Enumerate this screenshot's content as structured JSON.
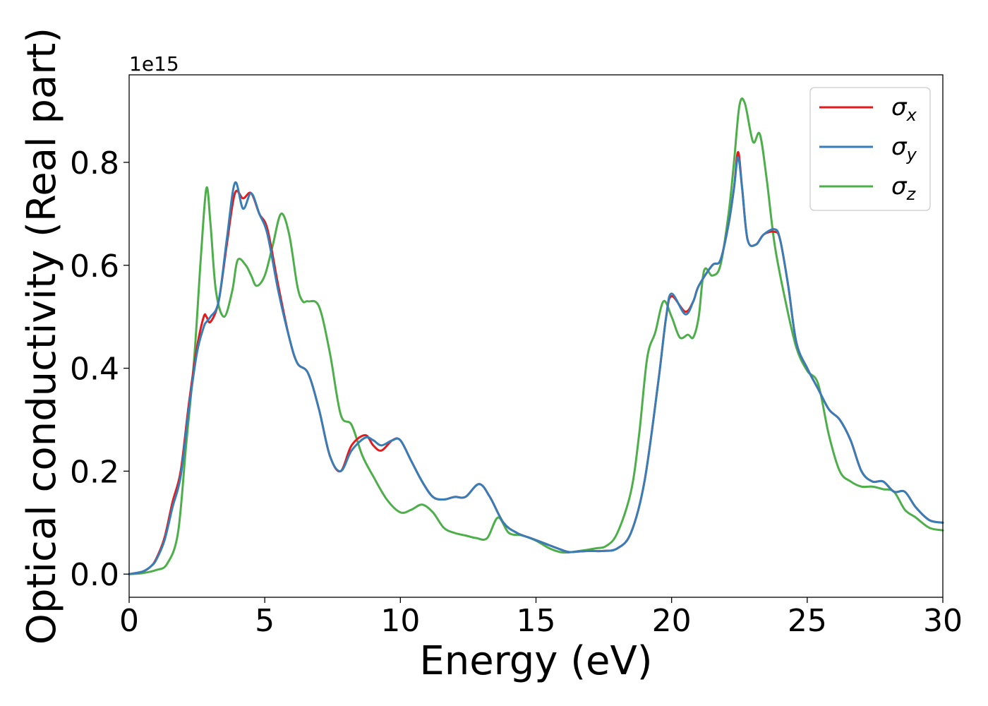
{
  "chart_data": {
    "type": "line",
    "title": "",
    "xlabel": "Energy (eV)",
    "ylabel": "Optical conductivity (Real part)",
    "y_offset_label": "1e15",
    "xlim": [
      0,
      30
    ],
    "ylim": [
      -0.045,
      0.97
    ],
    "xticks": [
      0,
      5,
      10,
      15,
      20,
      25,
      30
    ],
    "xtick_labels": [
      "0",
      "5",
      "10",
      "15",
      "20",
      "25",
      "30"
    ],
    "yticks": [
      0.0,
      0.2,
      0.4,
      0.6,
      0.8
    ],
    "ytick_labels": [
      "0.0",
      "0.2",
      "0.4",
      "0.6",
      "0.8"
    ],
    "grid": false,
    "legend_position": "top-right",
    "series": [
      {
        "name": "σx",
        "legend_base": "σ",
        "legend_sub": "x",
        "color": "#e41a1c",
        "x": [
          0,
          0.5,
          0.8,
          1.0,
          1.3,
          1.6,
          1.9,
          2.2,
          2.5,
          2.75,
          2.85,
          3.0,
          3.3,
          3.6,
          3.9,
          4.2,
          4.5,
          4.8,
          5.1,
          5.5,
          5.9,
          6.2,
          6.6,
          7.0,
          7.4,
          7.8,
          8.2,
          8.7,
          9.0,
          9.3,
          9.7,
          10.0,
          10.4,
          10.8,
          11.2,
          11.6,
          12.0,
          12.4,
          12.9,
          13.3,
          13.8,
          14.3,
          14.8,
          15.3,
          15.8,
          16.2,
          16.6,
          17.0,
          17.5,
          18.0,
          18.5,
          19.0,
          19.5,
          19.8,
          20.0,
          20.5,
          20.8,
          21.0,
          21.5,
          21.8,
          22.1,
          22.3,
          22.45,
          22.6,
          22.8,
          23.1,
          23.4,
          23.8,
          24.0,
          24.3,
          24.6,
          25.0,
          25.4,
          25.8,
          26.2,
          26.6,
          27.0,
          27.4,
          27.8,
          28.2,
          28.6,
          29.0,
          29.5,
          30.0
        ],
        "y": [
          0.0,
          0.005,
          0.015,
          0.03,
          0.07,
          0.14,
          0.2,
          0.33,
          0.44,
          0.5,
          0.5,
          0.49,
          0.53,
          0.64,
          0.74,
          0.73,
          0.74,
          0.7,
          0.67,
          0.56,
          0.46,
          0.41,
          0.39,
          0.32,
          0.23,
          0.2,
          0.25,
          0.27,
          0.25,
          0.24,
          0.26,
          0.26,
          0.22,
          0.18,
          0.15,
          0.145,
          0.15,
          0.15,
          0.175,
          0.15,
          0.1,
          0.08,
          0.07,
          0.06,
          0.05,
          0.043,
          0.044,
          0.045,
          0.045,
          0.05,
          0.08,
          0.18,
          0.37,
          0.5,
          0.54,
          0.51,
          0.53,
          0.56,
          0.6,
          0.61,
          0.68,
          0.75,
          0.82,
          0.75,
          0.65,
          0.64,
          0.66,
          0.665,
          0.65,
          0.56,
          0.45,
          0.4,
          0.36,
          0.32,
          0.3,
          0.26,
          0.2,
          0.18,
          0.18,
          0.16,
          0.16,
          0.13,
          0.105,
          0.1
        ]
      },
      {
        "name": "σy",
        "legend_base": "σ",
        "legend_sub": "y",
        "color": "#377eb8",
        "x": [
          0,
          0.5,
          0.8,
          1.0,
          1.3,
          1.6,
          1.9,
          2.2,
          2.5,
          2.75,
          2.85,
          3.0,
          3.3,
          3.6,
          3.9,
          4.2,
          4.5,
          4.8,
          5.1,
          5.5,
          5.9,
          6.2,
          6.6,
          7.0,
          7.4,
          7.8,
          8.2,
          8.7,
          9.0,
          9.3,
          9.7,
          10.0,
          10.4,
          10.8,
          11.2,
          11.6,
          12.0,
          12.4,
          12.9,
          13.3,
          13.8,
          14.3,
          14.8,
          15.3,
          15.8,
          16.2,
          16.6,
          17.0,
          17.5,
          18.0,
          18.5,
          19.0,
          19.5,
          19.8,
          20.0,
          20.5,
          20.8,
          21.0,
          21.5,
          21.8,
          22.1,
          22.3,
          22.45,
          22.6,
          22.8,
          23.1,
          23.4,
          23.8,
          24.0,
          24.3,
          24.6,
          25.0,
          25.4,
          25.8,
          26.2,
          26.6,
          27.0,
          27.4,
          27.8,
          28.2,
          28.6,
          29.0,
          29.5,
          30.0
        ],
        "y": [
          0.0,
          0.005,
          0.015,
          0.028,
          0.065,
          0.13,
          0.19,
          0.32,
          0.43,
          0.48,
          0.49,
          0.5,
          0.53,
          0.65,
          0.76,
          0.71,
          0.74,
          0.7,
          0.66,
          0.55,
          0.46,
          0.41,
          0.39,
          0.32,
          0.23,
          0.2,
          0.24,
          0.265,
          0.26,
          0.25,
          0.26,
          0.26,
          0.22,
          0.18,
          0.15,
          0.145,
          0.15,
          0.15,
          0.175,
          0.15,
          0.1,
          0.08,
          0.07,
          0.06,
          0.05,
          0.043,
          0.044,
          0.045,
          0.045,
          0.05,
          0.08,
          0.18,
          0.37,
          0.5,
          0.545,
          0.505,
          0.53,
          0.56,
          0.6,
          0.61,
          0.68,
          0.75,
          0.81,
          0.75,
          0.65,
          0.64,
          0.66,
          0.67,
          0.65,
          0.56,
          0.45,
          0.4,
          0.36,
          0.32,
          0.3,
          0.26,
          0.2,
          0.18,
          0.18,
          0.16,
          0.16,
          0.13,
          0.105,
          0.1
        ]
      },
      {
        "name": "σz",
        "legend_base": "σ",
        "legend_sub": "z",
        "color": "#4daf4a",
        "x": [
          0,
          0.5,
          1.0,
          1.4,
          1.8,
          2.1,
          2.4,
          2.65,
          2.85,
          3.0,
          3.2,
          3.5,
          3.8,
          4.0,
          4.3,
          4.5,
          4.7,
          5.0,
          5.3,
          5.6,
          5.9,
          6.2,
          6.4,
          6.6,
          7.0,
          7.4,
          7.8,
          8.2,
          8.6,
          9.0,
          9.5,
          10.0,
          10.4,
          10.8,
          11.2,
          11.6,
          12.0,
          12.4,
          12.8,
          13.2,
          13.6,
          14.0,
          14.5,
          15.0,
          15.5,
          16.0,
          16.6,
          17.2,
          17.6,
          18.0,
          18.5,
          18.8,
          19.1,
          19.4,
          19.7,
          20.0,
          20.3,
          20.6,
          20.8,
          21.0,
          21.2,
          21.5,
          21.8,
          22.1,
          22.3,
          22.5,
          22.7,
          23.0,
          23.25,
          23.5,
          23.8,
          24.2,
          24.6,
          25.0,
          25.4,
          25.8,
          26.2,
          26.6,
          27.0,
          27.4,
          27.8,
          28.2,
          28.6,
          29.0,
          29.5,
          30.0
        ],
        "y": [
          0.0,
          0.002,
          0.008,
          0.02,
          0.08,
          0.25,
          0.42,
          0.62,
          0.75,
          0.68,
          0.55,
          0.5,
          0.55,
          0.61,
          0.6,
          0.58,
          0.56,
          0.58,
          0.64,
          0.7,
          0.66,
          0.56,
          0.53,
          0.53,
          0.52,
          0.43,
          0.31,
          0.29,
          0.23,
          0.19,
          0.145,
          0.12,
          0.125,
          0.135,
          0.12,
          0.09,
          0.08,
          0.075,
          0.07,
          0.07,
          0.11,
          0.08,
          0.075,
          0.065,
          0.05,
          0.042,
          0.045,
          0.05,
          0.055,
          0.08,
          0.16,
          0.27,
          0.42,
          0.47,
          0.53,
          0.5,
          0.46,
          0.465,
          0.46,
          0.5,
          0.59,
          0.58,
          0.6,
          0.7,
          0.8,
          0.91,
          0.915,
          0.84,
          0.855,
          0.77,
          0.64,
          0.53,
          0.44,
          0.395,
          0.37,
          0.27,
          0.2,
          0.18,
          0.17,
          0.17,
          0.165,
          0.16,
          0.125,
          0.11,
          0.09,
          0.085
        ]
      }
    ]
  }
}
